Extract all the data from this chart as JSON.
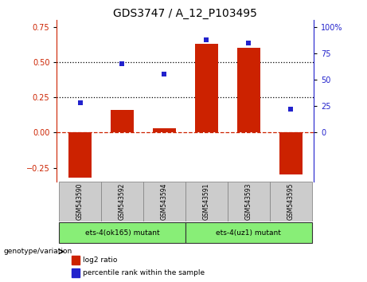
{
  "title": "GDS3747 / A_12_P103495",
  "samples": [
    "GSM543590",
    "GSM543592",
    "GSM543594",
    "GSM543591",
    "GSM543593",
    "GSM543595"
  ],
  "log2_ratio": [
    -0.32,
    0.16,
    0.03,
    0.63,
    0.6,
    -0.3
  ],
  "percentile_rank_pct": [
    28,
    65,
    55,
    88,
    85,
    22
  ],
  "ylim_left": [
    -0.35,
    0.8
  ],
  "yticks_left": [
    -0.25,
    0.0,
    0.25,
    0.5,
    0.75
  ],
  "yticks_right": [
    0,
    25,
    50,
    75,
    100
  ],
  "bar_color": "#cc2200",
  "dot_color": "#2222cc",
  "zero_line_color": "#cc2200",
  "hline_color": "#000000",
  "group1_label": "ets-4(ok165) mutant",
  "group2_label": "ets-4(uz1) mutant",
  "group1_indices": [
    0,
    1,
    2
  ],
  "group2_indices": [
    3,
    4,
    5
  ],
  "group_bg_color": "#88ee77",
  "sample_box_color": "#cccccc",
  "genotype_label": "genotype/variation",
  "legend_log2": "log2 ratio",
  "legend_pct": "percentile rank within the sample",
  "title_fontsize": 10,
  "tick_fontsize": 7,
  "bar_width": 0.55
}
